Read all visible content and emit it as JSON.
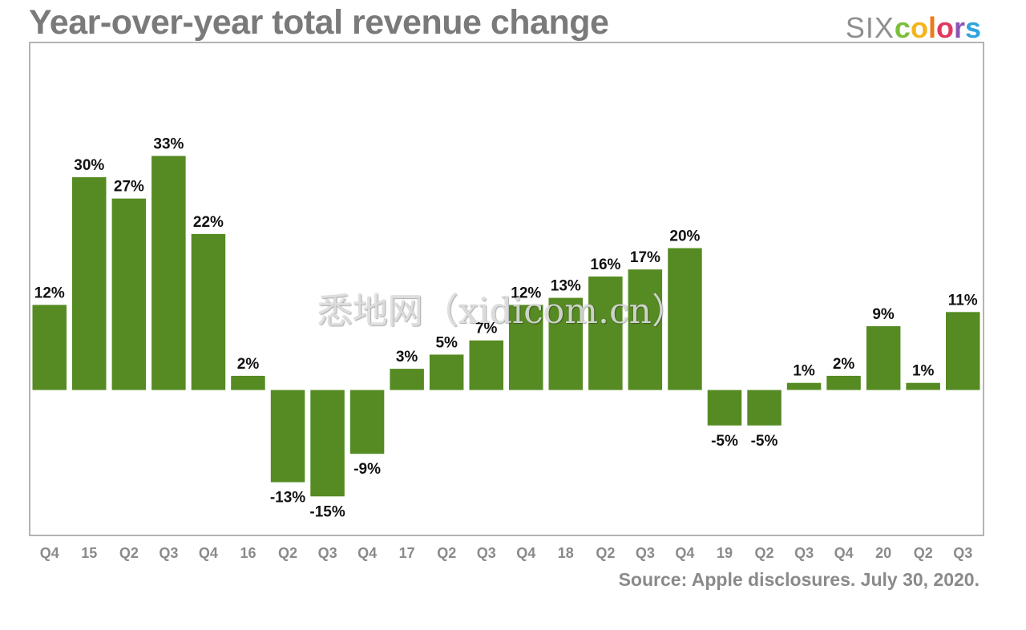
{
  "header": {
    "title": "Year-over-year total revenue change",
    "brand_part1": "SIX",
    "brand_part2": [
      "c",
      "o",
      "l",
      "o",
      "r",
      "s"
    ],
    "brand_colors": [
      "#7cbf3a",
      "#f4b41a",
      "#ec7a1c",
      "#e0385f",
      "#8a55b5",
      "#2fa4e0"
    ]
  },
  "footer": {
    "source": "Source: Apple disclosures. July 30, 2020."
  },
  "watermark": "悉地网（xidicom.cn）",
  "colors": {
    "bar": "#558b22",
    "frame": "#9a9a9a",
    "value_label": "#111111",
    "tick_label": "#8a8a8a",
    "title": "#7a7a7a"
  },
  "chart_data": {
    "type": "bar",
    "title": "Year-over-year total revenue change",
    "xlabel": "",
    "ylabel": "",
    "categories": [
      "Q4",
      "15",
      "Q2",
      "Q3",
      "Q4",
      "16",
      "Q2",
      "Q3",
      "Q4",
      "17",
      "Q2",
      "Q3",
      "Q4",
      "18",
      "Q2",
      "Q3",
      "Q4",
      "19",
      "Q2",
      "Q3",
      "Q4",
      "20",
      "Q2",
      "Q3"
    ],
    "values": [
      12,
      30,
      27,
      33,
      22,
      2,
      -13,
      -15,
      -9,
      3,
      5,
      7,
      12,
      13,
      16,
      17,
      20,
      -5,
      -5,
      1,
      2,
      9,
      1,
      11
    ],
    "labels": [
      "12%",
      "30%",
      "27%",
      "33%",
      "22%",
      "2%",
      "-13%",
      "-15%",
      "-9%",
      "3%",
      "5%",
      "7%",
      "12%",
      "13%",
      "16%",
      "17%",
      "20%",
      "-5%",
      "-5%",
      "1%",
      "2%",
      "9%",
      "1%",
      "11%"
    ],
    "ylim": [
      -20.5,
      49
    ],
    "grid": false,
    "legend": "none"
  }
}
